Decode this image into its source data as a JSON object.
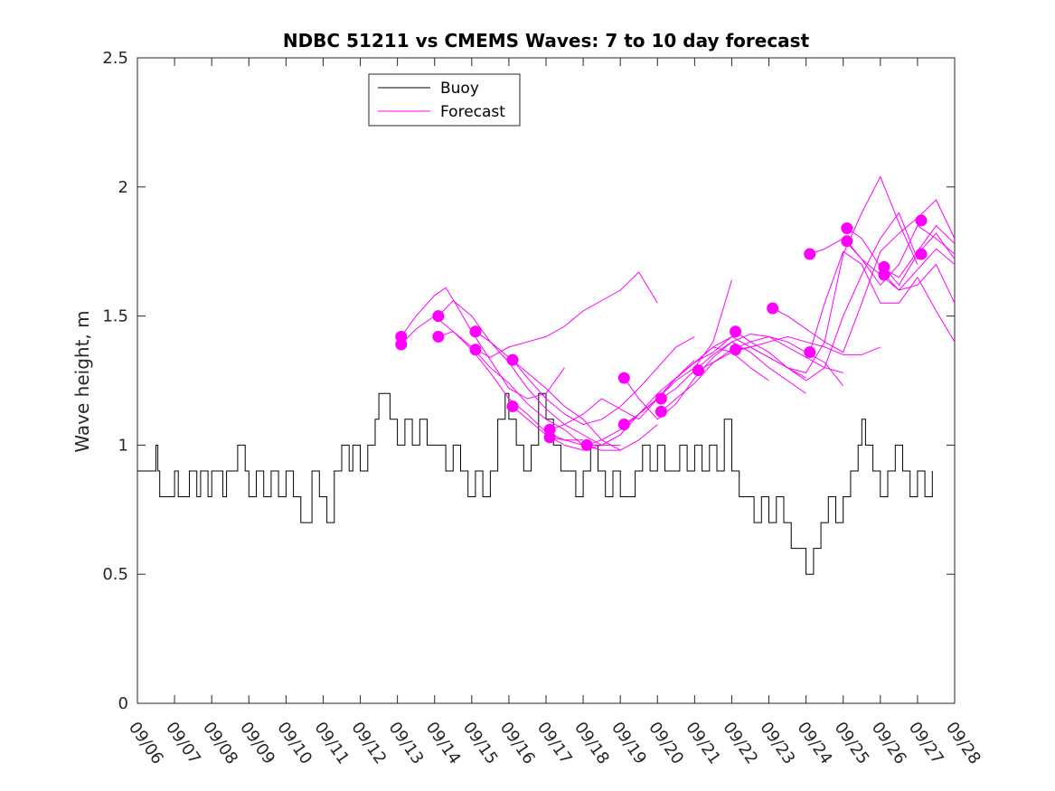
{
  "chart_data": {
    "type": "line",
    "title": "NDBC 51211 vs CMEMS Waves: 7 to 10 day forecast",
    "xlabel": "",
    "ylabel": "Wave height, m",
    "ylim": [
      0,
      2.5
    ],
    "yticks": [
      "0",
      "0.5",
      "1",
      "1.5",
      "2",
      "2.5"
    ],
    "xlim": [
      0,
      22
    ],
    "x_unit": "days since 09/06",
    "xtick_labels": [
      "09/06",
      "09/07",
      "09/08",
      "09/09",
      "09/10",
      "09/11",
      "09/12",
      "09/13",
      "09/14",
      "09/15",
      "09/16",
      "09/17",
      "09/18",
      "09/19",
      "09/20",
      "09/21",
      "09/22",
      "09/23",
      "09/24",
      "09/25",
      "09/26",
      "09/27",
      "09/28"
    ],
    "legend": {
      "position": "top-left",
      "entries": [
        {
          "label": "Buoy",
          "color": "#000000"
        },
        {
          "label": "Forecast",
          "color": "#ff00ff"
        }
      ]
    },
    "colors": {
      "buoy": "#000000",
      "forecast": "#ff00ff",
      "axes": "#262626"
    },
    "buoy": {
      "name": "Buoy",
      "x": [
        0.0,
        0.3,
        0.5,
        0.55,
        0.6,
        0.8,
        0.85,
        1.0,
        1.1,
        1.4,
        1.6,
        1.7,
        1.9,
        2.0,
        2.3,
        2.4,
        2.7,
        2.9,
        3.0,
        3.2,
        3.4,
        3.6,
        3.8,
        4.0,
        4.2,
        4.4,
        4.7,
        4.9,
        5.1,
        5.3,
        5.5,
        5.7,
        5.8,
        6.0,
        6.2,
        6.4,
        6.5,
        6.8,
        7.0,
        7.2,
        7.4,
        7.6,
        7.8,
        8.0,
        8.3,
        8.5,
        8.7,
        8.9,
        9.1,
        9.3,
        9.5,
        9.7,
        9.9,
        10.0,
        10.2,
        10.4,
        10.6,
        10.8,
        11.0,
        11.2,
        11.4,
        11.6,
        11.8,
        12.0,
        12.2,
        12.4,
        12.6,
        12.8,
        13.0,
        13.2,
        13.4,
        13.6,
        13.8,
        14.0,
        14.2,
        14.4,
        14.6,
        14.8,
        15.0,
        15.2,
        15.4,
        15.6,
        15.8,
        16.0,
        16.2,
        16.4,
        16.6,
        16.8,
        17.0,
        17.2,
        17.4,
        17.6,
        17.8,
        18.0,
        18.2,
        18.4,
        18.6,
        18.8,
        19.0,
        19.2,
        19.4,
        19.5,
        19.6,
        19.8,
        20.0,
        20.2,
        20.4,
        20.6,
        20.8,
        21.0,
        21.2,
        21.4
      ],
      "values": [
        0.9,
        0.9,
        1.0,
        0.9,
        0.8,
        0.8,
        0.8,
        0.9,
        0.8,
        0.9,
        0.8,
        0.9,
        0.8,
        0.9,
        0.8,
        0.9,
        1.0,
        0.9,
        0.8,
        0.9,
        0.8,
        0.9,
        0.8,
        0.9,
        0.8,
        0.7,
        0.9,
        0.8,
        0.7,
        0.9,
        1.0,
        0.9,
        1.0,
        0.9,
        1.0,
        1.1,
        1.2,
        1.1,
        1.0,
        1.1,
        1.0,
        1.1,
        1.0,
        1.0,
        0.9,
        1.0,
        0.9,
        0.8,
        0.9,
        0.8,
        0.9,
        1.1,
        1.2,
        1.1,
        1.0,
        0.9,
        1.0,
        1.2,
        1.1,
        1.0,
        0.9,
        0.9,
        0.8,
        0.9,
        1.0,
        0.9,
        0.8,
        0.9,
        0.8,
        0.8,
        0.9,
        1.0,
        0.9,
        1.0,
        0.9,
        0.9,
        1.0,
        0.9,
        1.0,
        0.9,
        1.0,
        0.9,
        1.1,
        0.9,
        0.8,
        0.8,
        0.7,
        0.8,
        0.7,
        0.8,
        0.7,
        0.6,
        0.6,
        0.5,
        0.6,
        0.7,
        0.8,
        0.7,
        0.8,
        0.9,
        1.0,
        1.1,
        1.0,
        0.9,
        0.8,
        0.9,
        1.0,
        0.9,
        0.8,
        0.9,
        0.8,
        0.9
      ]
    },
    "forecast_series": [
      {
        "name": "Forecast",
        "x": [
          7.1,
          7.5,
          8.0,
          8.3,
          8.6,
          9.0,
          9.5,
          10.0,
          10.5,
          11.0,
          11.5
        ],
        "values": [
          1.42,
          1.5,
          1.58,
          1.61,
          1.54,
          1.44,
          1.33,
          1.22,
          1.18,
          1.2,
          1.3
        ]
      },
      {
        "name": "Forecast",
        "x": [
          7.1,
          7.5,
          8.0,
          8.5,
          9.0,
          9.5,
          10.0,
          10.5,
          11.0,
          11.5,
          12.0
        ],
        "values": [
          1.39,
          1.45,
          1.5,
          1.44,
          1.37,
          1.28,
          1.18,
          1.12,
          1.05,
          1.02,
          1.02
        ]
      },
      {
        "name": "Forecast",
        "x": [
          8.1,
          8.5,
          9.0,
          9.5,
          10.0,
          10.5,
          11.0,
          11.5,
          12.0,
          12.5,
          13.0
        ],
        "values": [
          1.5,
          1.56,
          1.5,
          1.4,
          1.32,
          1.22,
          1.14,
          1.08,
          1.04,
          1.0,
          1.0
        ]
      },
      {
        "name": "Forecast",
        "x": [
          8.1,
          8.5,
          9.0,
          9.5,
          10.0,
          10.5,
          11.0,
          11.5,
          12.0,
          12.5,
          13.0
        ],
        "values": [
          1.42,
          1.44,
          1.38,
          1.3,
          1.24,
          1.16,
          1.1,
          1.06,
          1.0,
          0.98,
          0.98
        ]
      },
      {
        "name": "Forecast",
        "x": [
          9.1,
          9.5,
          10.0,
          10.5,
          11.0,
          11.5,
          12.0,
          12.5,
          13.0,
          13.5,
          14.0
        ],
        "values": [
          1.44,
          1.4,
          1.34,
          1.28,
          1.22,
          1.15,
          1.1,
          1.02,
          0.98,
          1.02,
          1.08
        ]
      },
      {
        "name": "Forecast",
        "x": [
          9.1,
          9.5,
          10.0,
          10.5,
          11.0,
          11.5,
          12.0,
          12.5,
          13.0,
          13.5,
          14.0
        ],
        "values": [
          1.37,
          1.34,
          1.38,
          1.4,
          1.42,
          1.46,
          1.52,
          1.56,
          1.6,
          1.67,
          1.55
        ]
      },
      {
        "name": "Forecast",
        "x": [
          10.1,
          10.5,
          11.0,
          11.5,
          12.0,
          12.5,
          13.0,
          13.5,
          14.0,
          14.5,
          15.0
        ],
        "values": [
          1.33,
          1.26,
          1.18,
          1.12,
          1.08,
          1.1,
          1.15,
          1.22,
          1.3,
          1.38,
          1.42
        ]
      },
      {
        "name": "Forecast",
        "x": [
          10.1,
          10.5,
          11.0,
          11.5,
          12.0,
          12.5,
          13.0,
          13.5,
          14.0,
          14.5,
          15.0
        ],
        "values": [
          1.15,
          1.1,
          1.04,
          1.0,
          0.98,
          1.0,
          1.04,
          1.12,
          1.2,
          1.26,
          1.33
        ]
      },
      {
        "name": "Forecast",
        "x": [
          11.1,
          11.5,
          12.0,
          12.5,
          13.0,
          13.5,
          14.0,
          14.5,
          15.0,
          15.5,
          16.0
        ],
        "values": [
          1.06,
          1.08,
          1.12,
          1.18,
          1.14,
          1.1,
          1.18,
          1.25,
          1.3,
          1.4,
          1.64
        ]
      },
      {
        "name": "Forecast",
        "x": [
          11.1,
          11.5,
          12.0,
          12.5,
          13.0,
          13.5,
          14.0,
          14.5,
          15.0,
          15.5,
          16.0
        ],
        "values": [
          1.03,
          1.02,
          1.0,
          1.0,
          1.04,
          1.12,
          1.18,
          1.26,
          1.32,
          1.36,
          1.42
        ]
      },
      {
        "name": "Forecast",
        "x": [
          12.1,
          12.5,
          13.0,
          13.5,
          14.0,
          14.5,
          15.0,
          15.5,
          16.0,
          16.5,
          17.0
        ],
        "values": [
          1.0,
          1.02,
          1.06,
          1.12,
          1.18,
          1.26,
          1.32,
          1.38,
          1.36,
          1.3,
          1.25
        ]
      },
      {
        "name": "Forecast",
        "x": [
          13.1,
          13.5,
          14.0,
          14.5,
          15.0,
          15.5,
          16.0,
          16.5,
          17.0,
          17.5,
          18.0
        ],
        "values": [
          1.26,
          1.18,
          1.1,
          1.16,
          1.26,
          1.34,
          1.4,
          1.36,
          1.3,
          1.25,
          1.2
        ]
      },
      {
        "name": "Forecast",
        "x": [
          13.1,
          13.5,
          14.0,
          14.5,
          15.0,
          15.5,
          16.0,
          16.5,
          17.0,
          17.5,
          18.0
        ],
        "values": [
          1.08,
          1.12,
          1.18,
          1.26,
          1.32,
          1.38,
          1.42,
          1.38,
          1.34,
          1.3,
          1.26
        ]
      },
      {
        "name": "Forecast",
        "x": [
          14.1,
          14.5,
          15.0,
          15.5,
          16.0,
          16.5,
          17.0,
          17.5,
          18.0,
          18.5,
          19.0
        ],
        "values": [
          1.18,
          1.22,
          1.29,
          1.35,
          1.4,
          1.43,
          1.42,
          1.38,
          1.34,
          1.3,
          1.28
        ]
      },
      {
        "name": "Forecast",
        "x": [
          14.1,
          14.5,
          15.0,
          15.5,
          16.0,
          16.5,
          17.0,
          17.5,
          18.0,
          18.5,
          19.0
        ],
        "values": [
          1.13,
          1.18,
          1.24,
          1.32,
          1.37,
          1.4,
          1.42,
          1.4,
          1.36,
          1.32,
          1.23
        ]
      },
      {
        "name": "Forecast",
        "x": [
          15.1,
          15.5,
          16.0,
          16.5,
          17.0,
          17.5,
          18.0,
          18.5,
          19.0,
          19.5,
          20.0
        ],
        "values": [
          1.29,
          1.32,
          1.36,
          1.38,
          1.4,
          1.42,
          1.4,
          1.38,
          1.35,
          1.35,
          1.38
        ]
      },
      {
        "name": "Forecast",
        "x": [
          16.1,
          16.5,
          17.0,
          17.5,
          18.0,
          18.5,
          19.0,
          19.5,
          20.0,
          20.5,
          21.0
        ],
        "values": [
          1.44,
          1.4,
          1.36,
          1.3,
          1.25,
          1.3,
          1.5,
          1.66,
          1.8,
          1.9,
          1.72
        ]
      },
      {
        "name": "Forecast",
        "x": [
          16.1,
          16.5,
          17.0,
          17.5,
          18.0,
          18.5,
          19.0,
          19.5,
          20.0,
          20.5,
          21.0
        ],
        "values": [
          1.37,
          1.38,
          1.34,
          1.3,
          1.28,
          1.4,
          1.74,
          1.9,
          2.04,
          1.86,
          1.7
        ]
      },
      {
        "name": "Forecast",
        "x": [
          17.1,
          17.5,
          18.0,
          18.5,
          19.0,
          19.5,
          20.0,
          20.5,
          21.0,
          21.5,
          22.0
        ],
        "values": [
          1.53,
          1.5,
          1.45,
          1.4,
          1.36,
          1.55,
          1.75,
          1.82,
          1.88,
          1.95,
          1.8
        ]
      },
      {
        "name": "Forecast",
        "x": [
          18.1,
          18.5,
          19.0,
          19.5,
          20.0,
          20.5,
          21.0,
          21.5,
          22.0
        ],
        "values": [
          1.36,
          1.55,
          1.75,
          1.7,
          1.55,
          1.55,
          1.65,
          1.52,
          1.4
        ]
      },
      {
        "name": "Forecast",
        "x": [
          18.1,
          18.5,
          19.0,
          19.5,
          20.0,
          20.5,
          21.0,
          21.5,
          22.0
        ],
        "values": [
          1.74,
          1.76,
          1.8,
          1.72,
          1.62,
          1.7,
          1.85,
          1.8,
          1.74
        ]
      },
      {
        "name": "Forecast",
        "x": [
          19.1,
          19.5,
          20.0,
          20.5,
          21.0,
          21.5,
          22.0
        ],
        "values": [
          1.84,
          1.8,
          1.69,
          1.65,
          1.75,
          1.85,
          1.78
        ]
      },
      {
        "name": "Forecast",
        "x": [
          19.1,
          19.5,
          20.0,
          20.5,
          21.0,
          21.5,
          22.0
        ],
        "values": [
          1.79,
          1.72,
          1.66,
          1.6,
          1.62,
          1.7,
          1.55
        ]
      },
      {
        "name": "Forecast",
        "x": [
          20.1,
          20.5,
          21.0,
          21.5,
          22.0
        ],
        "values": [
          1.69,
          1.62,
          1.74,
          1.82,
          1.72
        ]
      },
      {
        "name": "Forecast",
        "x": [
          20.1,
          20.5,
          21.0,
          21.5,
          22.0
        ],
        "values": [
          1.66,
          1.6,
          1.68,
          1.76,
          1.7
        ]
      }
    ],
    "markers": {
      "name": "Forecast start",
      "x": [
        7.1,
        7.1,
        8.1,
        8.1,
        9.1,
        9.1,
        10.1,
        10.1,
        11.1,
        11.1,
        12.1,
        13.1,
        13.1,
        14.1,
        14.1,
        15.1,
        16.1,
        16.1,
        17.1,
        18.1,
        18.1,
        19.1,
        19.1,
        20.1,
        20.1,
        21.1,
        21.1
      ],
      "values": [
        1.42,
        1.39,
        1.5,
        1.42,
        1.44,
        1.37,
        1.33,
        1.15,
        1.06,
        1.03,
        1.0,
        1.26,
        1.08,
        1.18,
        1.13,
        1.29,
        1.44,
        1.37,
        1.53,
        1.36,
        1.74,
        1.84,
        1.79,
        1.69,
        1.66,
        1.87,
        1.74
      ]
    }
  }
}
